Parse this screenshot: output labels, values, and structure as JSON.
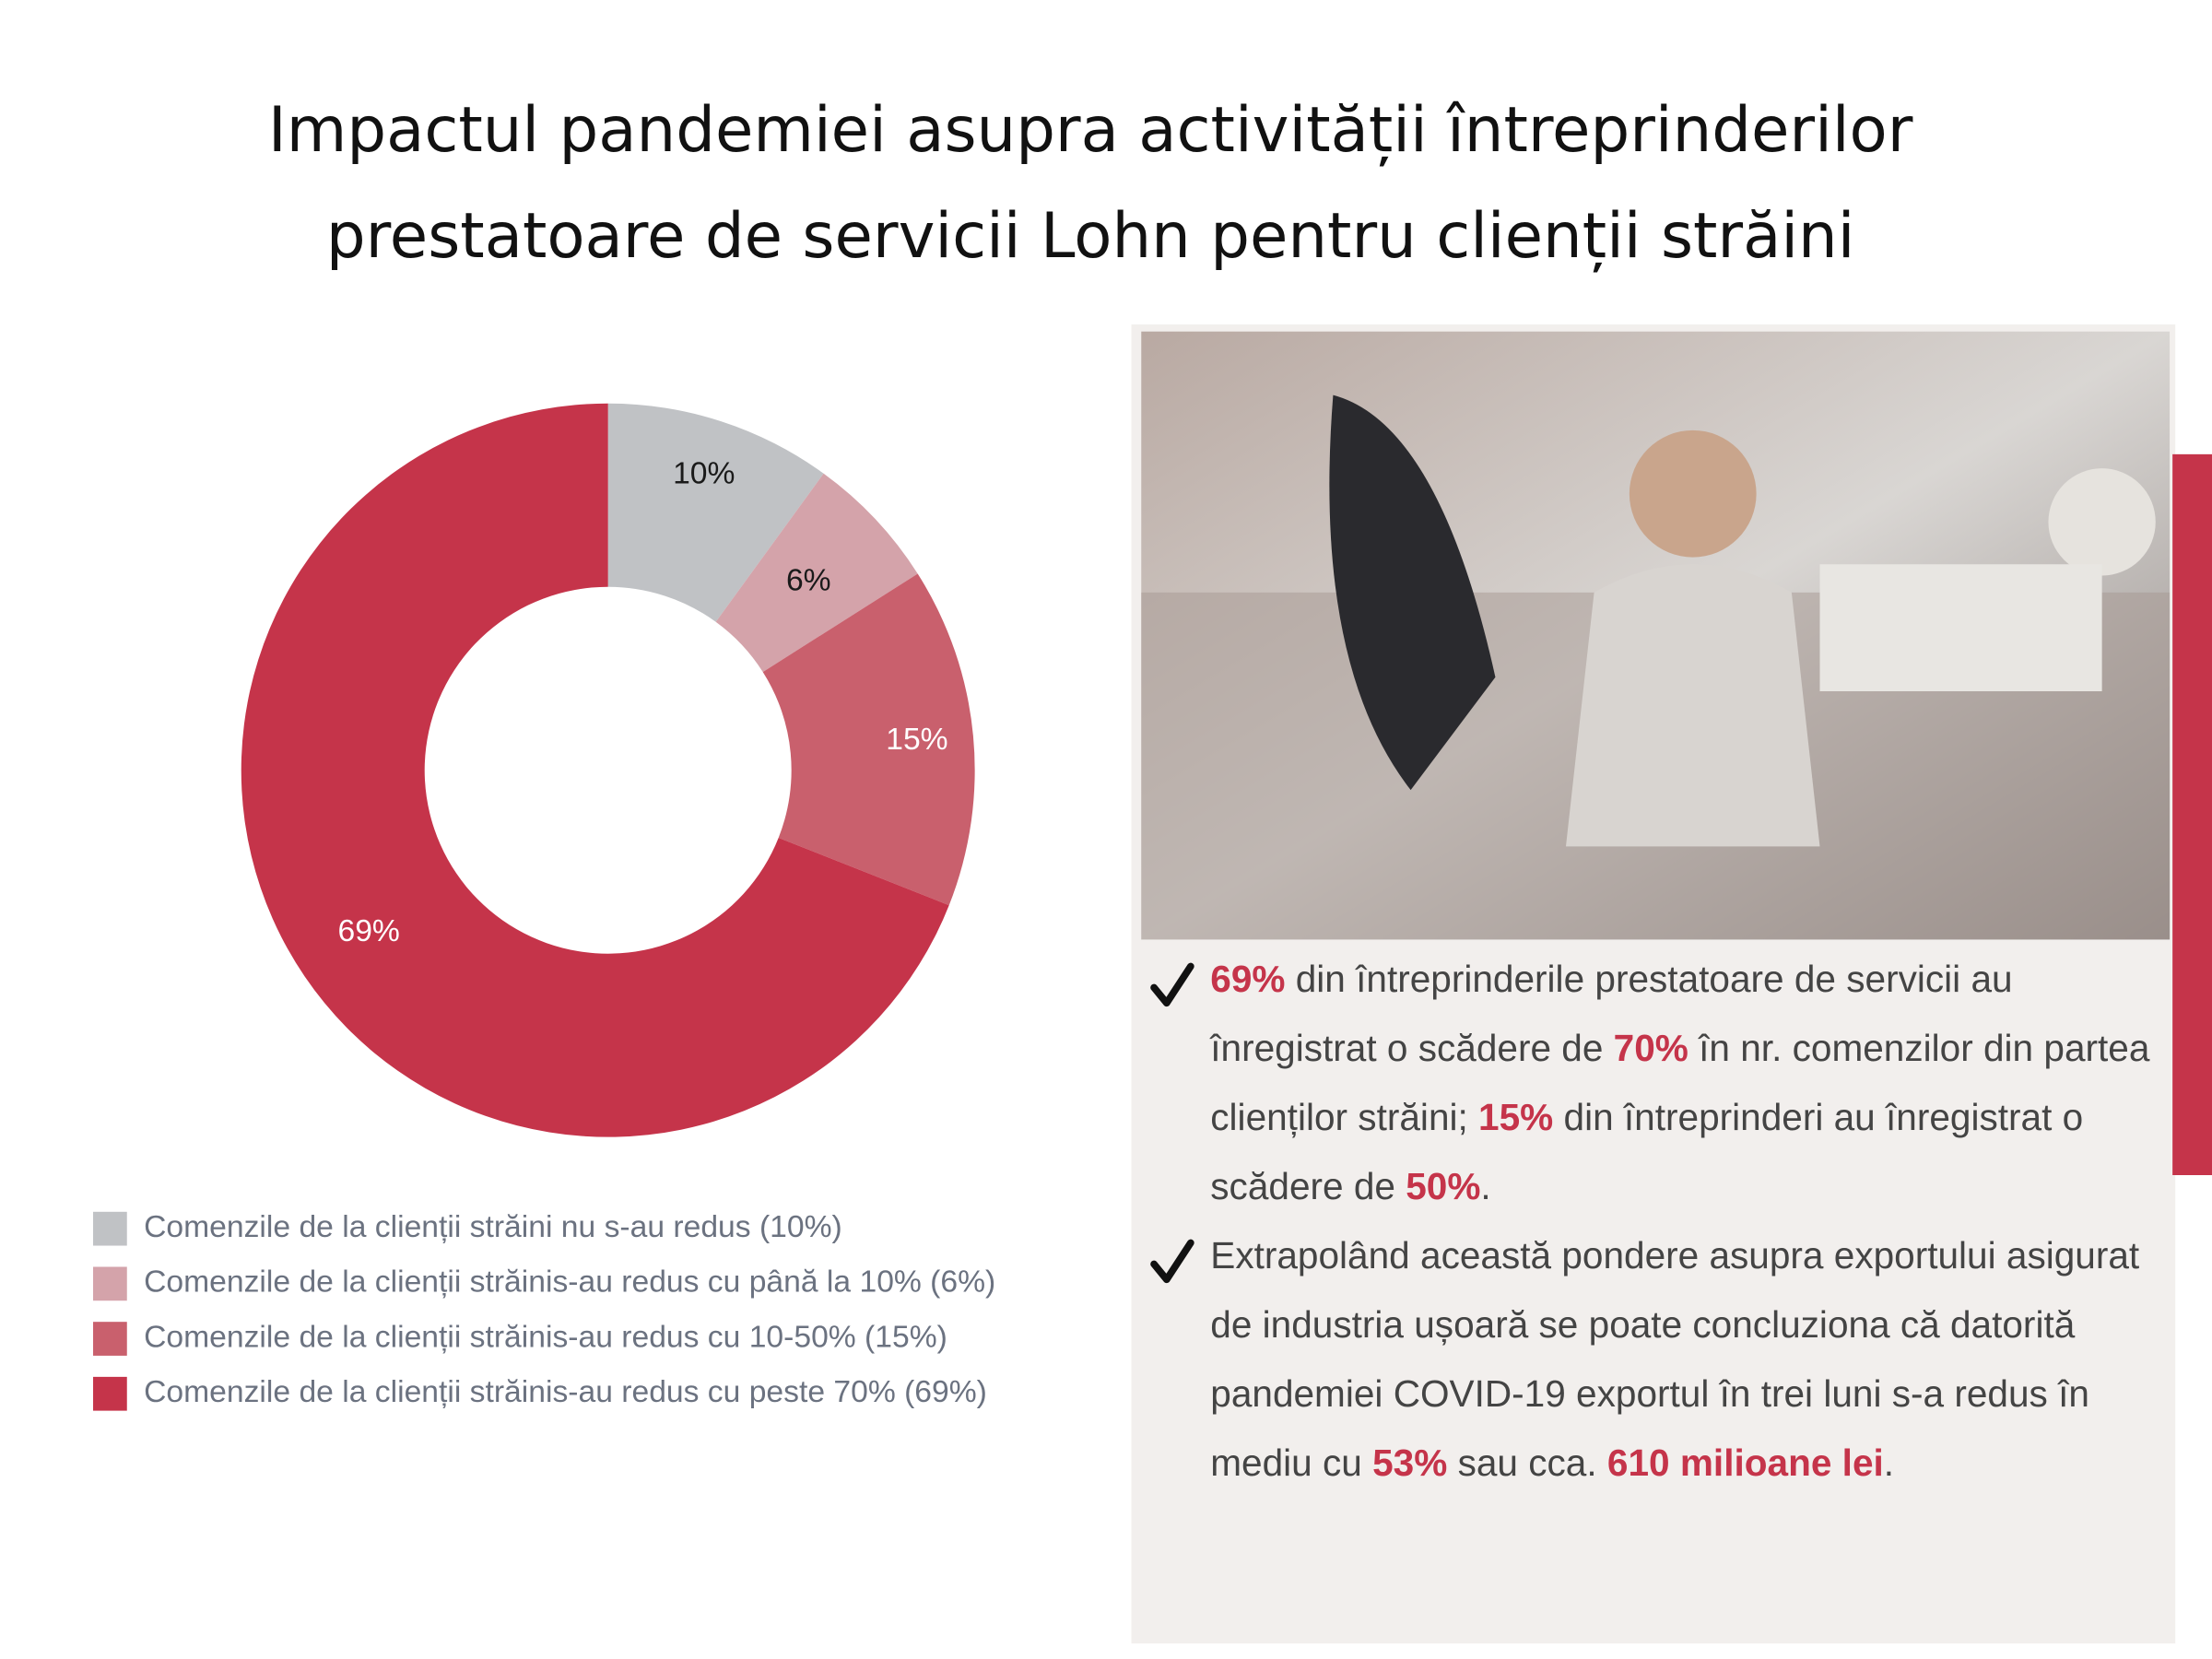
{
  "header": {
    "title": [
      "Impactul pandemiei asupra activității întreprinderilor",
      "prestatoare de servicii Lohn pentru clienții străini"
    ]
  },
  "chart_data": {
    "type": "pie",
    "donut": true,
    "categories": [
      "Comenzile de la clienții străini nu s-au redus (10%)",
      "Comenzile de la clienții străinis-au redus cu până la 10% (6%)",
      "Comenzile de la clienții străinis-au redus cu 10-50% (15%)",
      "Comenzile de la clienții străinis-au redus cu peste 70% (69%)"
    ],
    "values": [
      10,
      6,
      15,
      69
    ],
    "value_labels": [
      "10%",
      "6%",
      "15%",
      "69%"
    ],
    "colors": [
      "#c0c2c5",
      "#d4a3aa",
      "#c9606d",
      "#c5344a"
    ]
  },
  "panel": {
    "bullets": [
      [
        {
          "text": "69%",
          "highlight": true
        },
        {
          "text": " din întreprinderile prestatoare de servicii au înregistrat o scădere de ",
          "highlight": false
        },
        {
          "text": "70%",
          "highlight": true
        },
        {
          "text": "  în nr. comenzilor din partea clienților străini; ",
          "highlight": false
        },
        {
          "text": "15%",
          "highlight": true
        },
        {
          "text": " din întreprinderi au înregistrat o scădere de ",
          "highlight": false
        },
        {
          "text": "50%",
          "highlight": true
        },
        {
          "text": ".",
          "highlight": false
        }
      ],
      [
        {
          "text": "Extrapolând această pondere asupra exportului asigurat de industria ușoară se poate concluziona că datorită pandemiei COVID-19 exportul în trei luni s-a redus în mediu cu ",
          "highlight": false
        },
        {
          "text": "53%",
          "highlight": true
        },
        {
          "text": " sau cca. ",
          "highlight": false
        },
        {
          "text": "610 milioane lei",
          "highlight": true
        },
        {
          "text": ".",
          "highlight": false
        }
      ]
    ]
  }
}
